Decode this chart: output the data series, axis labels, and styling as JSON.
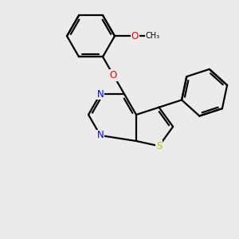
{
  "background_color": "#ebebeb",
  "bond_color": "#000000",
  "bond_width": 1.6,
  "N_color": "#0000ff",
  "O_color": "#ff0000",
  "S_color": "#bbbb00",
  "figsize": [
    3.0,
    3.0
  ],
  "dpi": 100,
  "xlim": [
    0,
    10
  ],
  "ylim": [
    0,
    10
  ]
}
